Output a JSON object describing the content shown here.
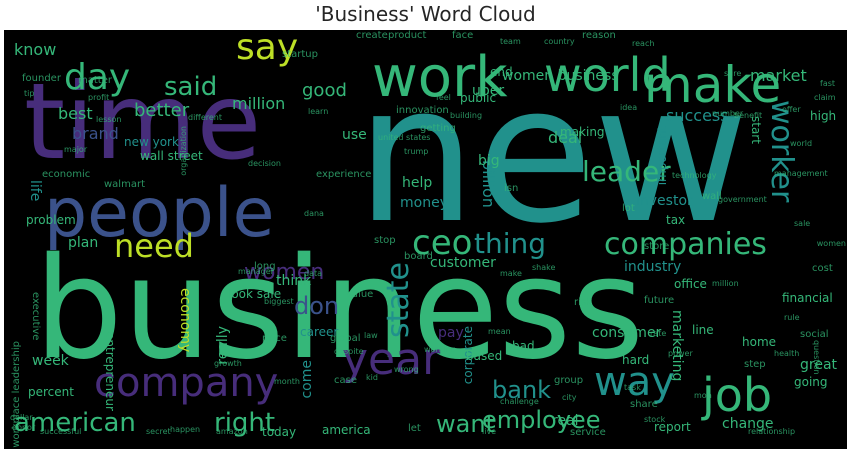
{
  "title": "'Business' Word Cloud",
  "palette": {
    "purple": "#472d7b",
    "deep_purple": "#440154",
    "blue": "#3b528b",
    "teal": "#21918c",
    "cyan": "#2c728e",
    "green": "#5ec962",
    "bright_green": "#35b779",
    "yellow": "#bddf26",
    "gold": "#fde725"
  },
  "words": [
    {
      "text": "new",
      "color": "teal"
    },
    {
      "text": "business",
      "color": "bright_green"
    },
    {
      "text": "time",
      "color": "purple"
    },
    {
      "text": "people",
      "color": "blue"
    },
    {
      "text": "work",
      "color": "bright_green"
    },
    {
      "text": "make",
      "color": "bright_green"
    },
    {
      "text": "world",
      "color": "bright_green"
    },
    {
      "text": "company",
      "color": "purple"
    },
    {
      "text": "year",
      "color": "purple"
    },
    {
      "text": "job",
      "color": "bright_green"
    },
    {
      "text": "way",
      "color": "teal"
    },
    {
      "text": "companies",
      "color": "bright_green"
    },
    {
      "text": "day",
      "color": "bright_green"
    },
    {
      "text": "say",
      "color": "yellow"
    },
    {
      "text": "said",
      "color": "bright_green"
    },
    {
      "text": "ceo",
      "color": "bright_green"
    },
    {
      "text": "need",
      "color": "yellow"
    },
    {
      "text": "worker",
      "color": "teal"
    },
    {
      "text": "leader",
      "color": "bright_green"
    },
    {
      "text": "thing",
      "color": "teal"
    },
    {
      "text": "state",
      "color": "teal"
    },
    {
      "text": "american",
      "color": "bright_green"
    },
    {
      "text": "right",
      "color": "bright_green"
    },
    {
      "text": "employee",
      "color": "bright_green"
    },
    {
      "text": "women",
      "color": "purple"
    },
    {
      "text": "want",
      "color": "bright_green"
    },
    {
      "text": "bank",
      "color": "teal"
    },
    {
      "text": "don",
      "color": "blue"
    },
    {
      "text": "good",
      "color": "bright_green"
    },
    {
      "text": "million",
      "color": "bright_green"
    },
    {
      "text": "better",
      "color": "bright_green"
    },
    {
      "text": "know",
      "color": "bright_green"
    },
    {
      "text": "success",
      "color": "teal"
    },
    {
      "text": "market",
      "color": "bright_green"
    },
    {
      "text": "women business",
      "color": "bright_green"
    },
    {
      "text": "uber",
      "color": "bright_green"
    },
    {
      "text": "deal",
      "color": "bright_green"
    },
    {
      "text": "best",
      "color": "bright_green"
    },
    {
      "text": "brand",
      "color": "blue"
    },
    {
      "text": "new york",
      "color": "teal"
    },
    {
      "text": "wall street",
      "color": "bright_green"
    },
    {
      "text": "help",
      "color": "bright_green"
    },
    {
      "text": "money",
      "color": "teal"
    },
    {
      "text": "billion",
      "color": "teal"
    },
    {
      "text": "investor",
      "color": "teal"
    },
    {
      "text": "plan",
      "color": "bright_green"
    },
    {
      "text": "customer",
      "color": "bright_green"
    },
    {
      "text": "industry",
      "color": "teal"
    },
    {
      "text": "think",
      "color": "bright_green"
    },
    {
      "text": "look sale",
      "color": "bright_green"
    },
    {
      "text": "economy",
      "color": "yellow"
    },
    {
      "text": "really",
      "color": "bright_green"
    },
    {
      "text": "pay",
      "color": "purple"
    },
    {
      "text": "consumer",
      "color": "bright_green"
    },
    {
      "text": "marketing",
      "color": "bright_green"
    },
    {
      "text": "week",
      "color": "bright_green"
    },
    {
      "text": "come",
      "color": "teal"
    },
    {
      "text": "america",
      "color": "bright_green"
    },
    {
      "text": "today",
      "color": "bright_green"
    },
    {
      "text": "report",
      "color": "bright_green"
    },
    {
      "text": "change",
      "color": "bright_green"
    },
    {
      "text": "great",
      "color": "bright_green"
    },
    {
      "text": "going",
      "color": "bright_green"
    },
    {
      "text": "financial",
      "color": "bright_green"
    },
    {
      "text": "home",
      "color": "bright_green"
    },
    {
      "text": "tax",
      "color": "bright_green"
    },
    {
      "text": "important",
      "color": "teal"
    },
    {
      "text": "making",
      "color": "bright_green"
    },
    {
      "text": "end",
      "color": "bright_green"
    },
    {
      "text": "use",
      "color": "bright_green"
    },
    {
      "text": "big",
      "color": "bright_green"
    },
    {
      "text": "problem",
      "color": "bright_green"
    },
    {
      "text": "life",
      "color": "teal"
    },
    {
      "text": "corporate",
      "color": "teal"
    },
    {
      "text": "start",
      "color": "bright_green"
    },
    {
      "text": "high",
      "color": "bright_green"
    },
    {
      "text": "career",
      "color": "teal"
    },
    {
      "text": "entrepreneur",
      "color": "bright_green"
    },
    {
      "text": "office",
      "color": "bright_green"
    },
    {
      "text": "future",
      "color": "bright_green"
    },
    {
      "text": "price",
      "color": "bright_green"
    },
    {
      "text": "global",
      "color": "bright_green"
    },
    {
      "text": "case",
      "color": "bright_green"
    },
    {
      "text": "percent",
      "color": "bright_green"
    },
    {
      "text": "line",
      "color": "bright_green"
    },
    {
      "text": "social",
      "color": "bright_green"
    },
    {
      "text": "cost",
      "color": "bright_green"
    },
    {
      "text": "step",
      "color": "bright_green"
    },
    {
      "text": "real",
      "color": "bright_green"
    },
    {
      "text": "share",
      "color": "bright_green"
    },
    {
      "text": "service",
      "color": "bright_green"
    },
    {
      "text": "group",
      "color": "bright_green"
    },
    {
      "text": "bad",
      "color": "bright_green"
    },
    {
      "text": "based",
      "color": "bright_green"
    },
    {
      "text": "hard",
      "color": "bright_green"
    },
    {
      "text": "executive",
      "color": "bright_green"
    },
    {
      "text": "long",
      "color": "bright_green"
    },
    {
      "text": "economic",
      "color": "bright_green"
    },
    {
      "text": "walmart",
      "color": "bright_green"
    },
    {
      "text": "experience",
      "color": "bright_green"
    },
    {
      "text": "public",
      "color": "bright_green"
    },
    {
      "text": "startup",
      "color": "bright_green"
    },
    {
      "text": "innovation",
      "color": "bright_green"
    },
    {
      "text": "create",
      "color": "bright_green"
    },
    {
      "text": "product",
      "color": "bright_green"
    },
    {
      "text": "face",
      "color": "bright_green"
    },
    {
      "text": "reason",
      "color": "bright_green"
    },
    {
      "text": "founder",
      "color": "bright_green"
    },
    {
      "text": "matter",
      "color": "bright_green"
    },
    {
      "text": "let",
      "color": "bright_green"
    },
    {
      "text": "value",
      "color": "bright_green"
    },
    {
      "text": "store",
      "color": "bright_green"
    },
    {
      "text": "risk",
      "color": "bright_green"
    },
    {
      "text": "isn",
      "color": "bright_green"
    },
    {
      "text": "getting",
      "color": "bright_green"
    },
    {
      "text": "board",
      "color": "bright_green"
    },
    {
      "text": "stop",
      "color": "bright_green"
    },
    {
      "text": "lot",
      "color": "bright_green"
    },
    {
      "text": "wall",
      "color": "bright_green"
    },
    {
      "text": "organization",
      "color": "bright_green"
    },
    {
      "text": "workplace leadership",
      "color": "bright_green"
    },
    {
      "text": "growth",
      "color": "bright_green"
    },
    {
      "text": "month",
      "color": "bright_green"
    },
    {
      "text": "kid",
      "color": "bright_green"
    },
    {
      "text": "challenge",
      "color": "bright_green"
    },
    {
      "text": "world",
      "color": "bright_green"
    },
    {
      "text": "rate",
      "color": "bright_green"
    },
    {
      "text": "power",
      "color": "bright_green"
    },
    {
      "text": "question",
      "color": "bright_green"
    },
    {
      "text": "rule",
      "color": "bright_green"
    },
    {
      "text": "technology",
      "color": "bright_green"
    },
    {
      "text": "government",
      "color": "bright_green"
    },
    {
      "text": "major",
      "color": "bright_green"
    },
    {
      "text": "manager",
      "color": "bright_green"
    },
    {
      "text": "despite",
      "color": "bright_green"
    },
    {
      "text": "law",
      "color": "bright_green"
    },
    {
      "text": "mean",
      "color": "bright_green"
    },
    {
      "text": "united states",
      "color": "bright_green"
    },
    {
      "text": "different",
      "color": "bright_green"
    },
    {
      "text": "decision",
      "color": "bright_green"
    },
    {
      "text": "biggest",
      "color": "bright_green"
    },
    {
      "text": "working",
      "color": "bright_green"
    },
    {
      "text": "successful",
      "color": "bright_green"
    },
    {
      "text": "happen",
      "color": "bright_green"
    },
    {
      "text": "amazon",
      "color": "bright_green"
    },
    {
      "text": "relationship",
      "color": "bright_green"
    },
    {
      "text": "management",
      "color": "bright_green"
    },
    {
      "text": "number",
      "color": "bright_green"
    },
    {
      "text": "benefit",
      "color": "bright_green"
    },
    {
      "text": "offer",
      "color": "bright_green"
    },
    {
      "text": "health",
      "color": "bright_green"
    },
    {
      "text": "team",
      "color": "bright_green"
    },
    {
      "text": "country",
      "color": "bright_green"
    },
    {
      "text": "reach",
      "color": "bright_green"
    },
    {
      "text": "building",
      "color": "bright_green"
    },
    {
      "text": "profit",
      "color": "bright_green"
    },
    {
      "text": "idea",
      "color": "bright_green"
    },
    {
      "text": "learn",
      "color": "bright_green"
    },
    {
      "text": "lesson",
      "color": "bright_green"
    },
    {
      "text": "feel",
      "color": "bright_green"
    },
    {
      "text": "trump",
      "color": "bright_green"
    },
    {
      "text": "live",
      "color": "bright_green"
    },
    {
      "text": "city",
      "color": "bright_green"
    },
    {
      "text": "wrong",
      "color": "bright_green"
    },
    {
      "text": "shake",
      "color": "bright_green"
    },
    {
      "text": "make",
      "color": "bright_green"
    },
    {
      "text": "secret",
      "color": "bright_green"
    },
    {
      "text": "million",
      "color": "bright_green"
    },
    {
      "text": "donor",
      "color": "bright_green"
    },
    {
      "text": "mon",
      "color": "bright_green"
    },
    {
      "text": "task",
      "color": "bright_green"
    },
    {
      "text": "dollar",
      "color": "bright_green"
    },
    {
      "text": "dana",
      "color": "bright_green"
    },
    {
      "text": "stock",
      "color": "bright_green"
    },
    {
      "text": "sure",
      "color": "bright_green"
    },
    {
      "text": "fast",
      "color": "bright_green"
    },
    {
      "text": "claim",
      "color": "bright_green"
    },
    {
      "text": "sale",
      "color": "bright_green"
    },
    {
      "text": "women",
      "color": "bright_green"
    },
    {
      "text": "tip",
      "color": "bright_green"
    },
    {
      "text": "data",
      "color": "bright_green"
    }
  ]
}
